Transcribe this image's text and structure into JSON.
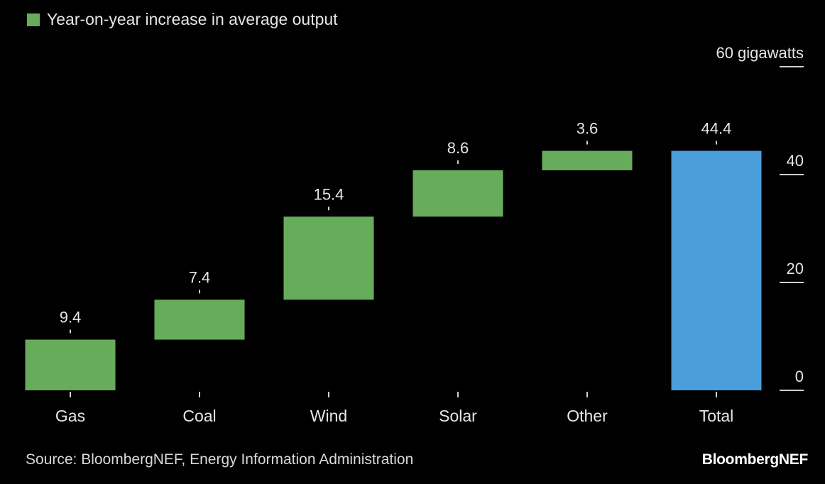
{
  "legend": {
    "label": "Year-on-year increase in average output"
  },
  "source": "Source: BloombergNEF, Energy Information Administration",
  "brand": "BloombergNEF",
  "colors": {
    "increase": "#67ac5b",
    "total": "#4a9ed9",
    "background": "#000000"
  },
  "chart_data": {
    "type": "waterfall",
    "categories": [
      "Gas",
      "Coal",
      "Wind",
      "Solar",
      "Other",
      "Total"
    ],
    "series": [
      {
        "name": "Year-on-year increase in average output",
        "values": [
          9.4,
          7.4,
          15.4,
          8.6,
          3.6,
          44.4
        ]
      }
    ],
    "data_labels": [
      "9.4",
      "7.4",
      "15.4",
      "8.6",
      "3.6",
      "44.4"
    ],
    "total_category": "Total",
    "ylim": [
      0,
      60
    ],
    "yticks": [
      0,
      20,
      40,
      60
    ],
    "ytick_labels": [
      "0",
      "20",
      "40",
      "60 gigawatts"
    ],
    "y_axis_position": "right",
    "grid": false,
    "legend_position": "top-left"
  }
}
